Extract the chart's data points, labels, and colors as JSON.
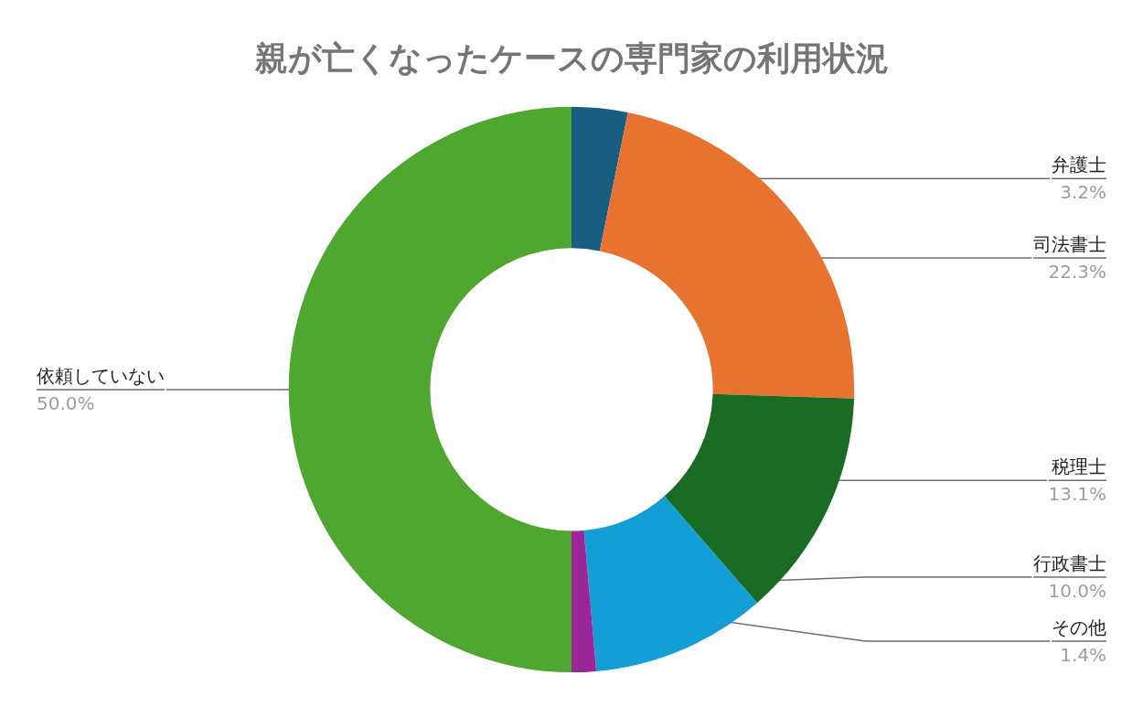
{
  "chart_data": {
    "type": "donut",
    "title": "親が亡くなったケースの専門家の利用状況",
    "categories": [
      "弁護士",
      "司法書士",
      "税理士",
      "行政書士",
      "その他",
      "依頼していない"
    ],
    "values": [
      3.2,
      22.3,
      13.1,
      10.0,
      1.4,
      50.0
    ],
    "value_labels": [
      "3.2%",
      "22.3%",
      "13.1%",
      "10.0%",
      "1.4%",
      "50.0%"
    ],
    "colors": [
      "#175e80",
      "#e8722f",
      "#1a6b24",
      "#139fd6",
      "#9b2699",
      "#4ea72f"
    ]
  }
}
